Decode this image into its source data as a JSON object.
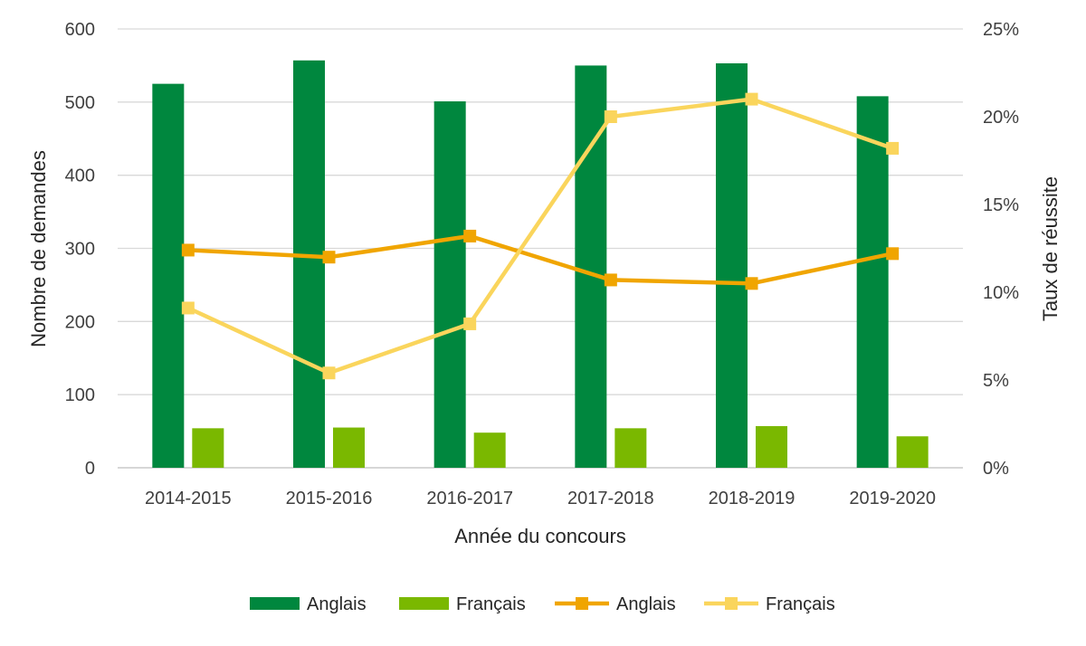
{
  "chart_data": {
    "type": "bar",
    "categories": [
      "2014-2015",
      "2015-2016",
      "2016-2017",
      "2017-2018",
      "2018-2019",
      "2019-2020"
    ],
    "xlabel": "Année du concours",
    "ylabel_left": "Nombre de demandes",
    "ylabel_right": "Taux de réussite",
    "ylim_left": [
      0,
      600
    ],
    "yticks_left": [
      "0",
      "100",
      "200",
      "300",
      "400",
      "500",
      "600"
    ],
    "ylim_right": [
      0,
      25
    ],
    "yticks_right": [
      "0%",
      "5%",
      "10%",
      "15%",
      "20%",
      "25%"
    ],
    "grid": true,
    "legend_position": "bottom",
    "bar_series": [
      {
        "name": "Anglais",
        "color": "#00873E",
        "values": [
          525,
          557,
          501,
          550,
          553,
          508
        ]
      },
      {
        "name": "Français",
        "color": "#7AB800",
        "values": [
          54,
          55,
          48,
          54,
          57,
          43
        ]
      }
    ],
    "line_series": [
      {
        "name": "Anglais",
        "color": "#F0A500",
        "axis": "right",
        "values": [
          12.4,
          12.0,
          13.2,
          10.7,
          10.5,
          12.2
        ]
      },
      {
        "name": "Français",
        "color": "#FAD55C",
        "axis": "right",
        "values": [
          9.1,
          5.4,
          8.2,
          20.0,
          21.0,
          18.2
        ]
      }
    ]
  }
}
